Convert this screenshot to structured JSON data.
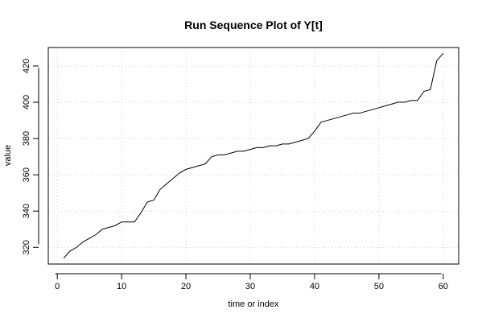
{
  "chart_data": {
    "type": "line",
    "title": "Run Sequence Plot of Y[t]",
    "xlabel": "time or index",
    "ylabel": "value",
    "xlim": [
      -1.4,
      62.4
    ],
    "ylim": [
      310.8,
      430.2
    ],
    "xticks": [
      0,
      10,
      20,
      30,
      40,
      50,
      60
    ],
    "yticks": [
      320,
      340,
      360,
      380,
      400,
      420
    ],
    "grid": true,
    "series": [
      {
        "x": [
          1,
          2,
          3,
          4,
          5,
          6,
          7,
          8,
          9,
          10,
          11,
          12,
          13,
          14,
          15,
          16,
          17,
          18,
          19,
          20,
          21,
          22,
          23,
          24,
          25,
          26,
          27,
          28,
          29,
          30,
          31,
          32,
          33,
          34,
          35,
          36,
          37,
          38,
          39,
          40,
          41,
          42,
          43,
          44,
          45,
          46,
          47,
          48,
          49,
          50,
          51,
          52,
          53,
          54,
          55,
          56,
          57,
          58,
          59,
          60
        ],
        "values": [
          314,
          318,
          320,
          323,
          325,
          327,
          330,
          331,
          332,
          334,
          334,
          334,
          339,
          345,
          346,
          352,
          355,
          358,
          361,
          363,
          364,
          365,
          366,
          370,
          371,
          371,
          372,
          373,
          373,
          374,
          375,
          375,
          376,
          376,
          377,
          377,
          378,
          379,
          380,
          384,
          389,
          390,
          391,
          392,
          393,
          394,
          394,
          395,
          396,
          397,
          398,
          399,
          400,
          400,
          401,
          401,
          406,
          407,
          423,
          427
        ]
      }
    ]
  }
}
